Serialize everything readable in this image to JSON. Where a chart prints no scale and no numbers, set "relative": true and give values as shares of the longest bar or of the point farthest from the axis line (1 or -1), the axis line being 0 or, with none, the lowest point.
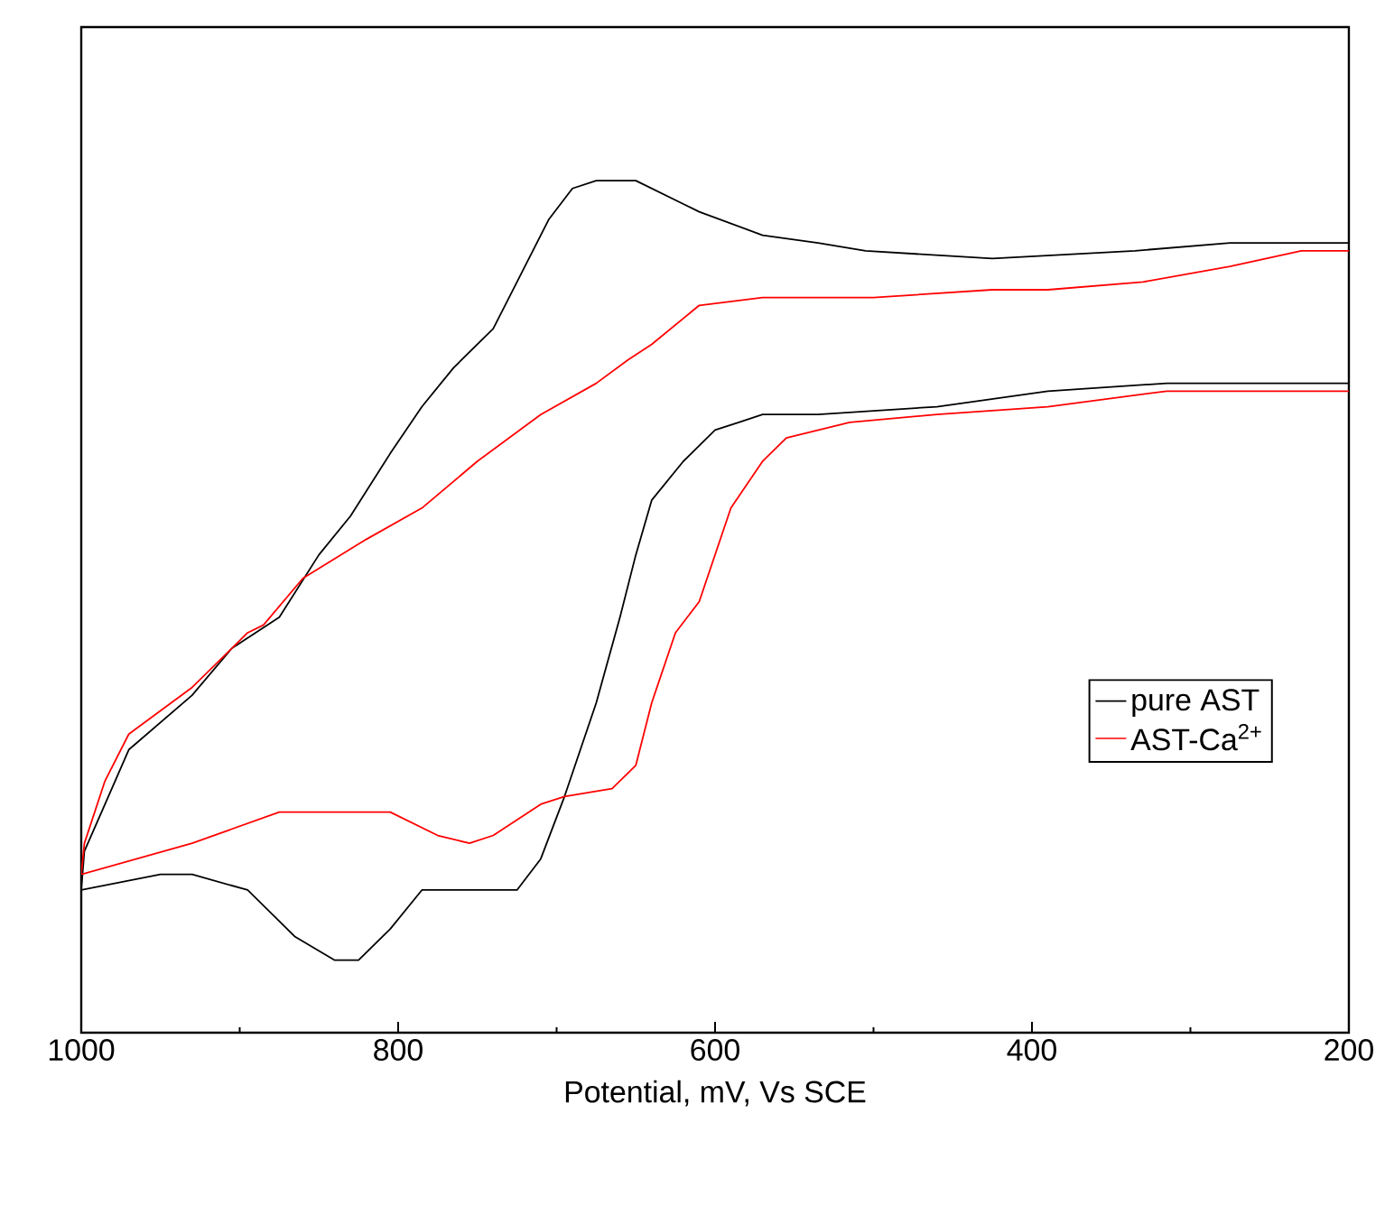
{
  "chart_data": {
    "type": "line",
    "xlabel": "Potential, mV, Vs SCE",
    "relative": true,
    "xlim": [
      1000,
      200
    ],
    "xticks": [
      1000,
      800,
      600,
      400,
      200
    ],
    "tick_labels": "x",
    "legend": "right",
    "series": [
      {
        "name": "pure AST",
        "color": "#000000",
        "x": [
          1000,
          950,
          930,
          895,
          865,
          840,
          825,
          805,
          785,
          765,
          735,
          725,
          710,
          695,
          675,
          660,
          650,
          640,
          620,
          600,
          585,
          570,
          535,
          460,
          390,
          315,
          230,
          200
        ],
        "values": [
          0.09,
          0.11,
          0.11,
          0.09,
          0.03,
          0,
          0,
          0.04,
          0.09,
          0.09,
          0.09,
          0.09,
          0.13,
          0.21,
          0.33,
          0.44,
          0.52,
          0.59,
          0.64,
          0.68,
          0.69,
          0.7,
          0.7,
          0.71,
          0.73,
          0.74,
          0.74,
          0.74
        ]
      },
      {
        "color": "#000000",
        "x": [
          200,
          230,
          275,
          335,
          425,
          505,
          535,
          570,
          610,
          620,
          650,
          675,
          690,
          705,
          720,
          740,
          765,
          785,
          805,
          830,
          850,
          875,
          905,
          930,
          970,
          985,
          998,
          1000
        ],
        "values": [
          0.92,
          0.92,
          0.92,
          0.91,
          0.9,
          0.91,
          0.92,
          0.93,
          0.96,
          0.97,
          1,
          1,
          0.99,
          0.95,
          0.89,
          0.81,
          0.76,
          0.71,
          0.65,
          0.57,
          0.52,
          0.44,
          0.4,
          0.34,
          0.27,
          0.2,
          0.14,
          0.09
        ]
      },
      {
        "name": "AST-Ca$^{2+}$",
        "color": "#ff0000",
        "x": [
          1000,
          930,
          875,
          840,
          805,
          775,
          755,
          740,
          710,
          695,
          665,
          650,
          640,
          625,
          610,
          605,
          590,
          570,
          555,
          515,
          460,
          390,
          315,
          230,
          200
        ],
        "values": [
          0.11,
          0.15,
          0.19,
          0.19,
          0.19,
          0.16,
          0.15,
          0.16,
          0.2,
          0.21,
          0.22,
          0.25,
          0.33,
          0.42,
          0.46,
          0.49,
          0.58,
          0.64,
          0.67,
          0.69,
          0.7,
          0.71,
          0.73,
          0.73,
          0.73
        ]
      },
      {
        "color": "#ff0000",
        "x": [
          200,
          230,
          275,
          330,
          390,
          425,
          500,
          570,
          610,
          640,
          655,
          675,
          710,
          750,
          785,
          820,
          860,
          885,
          895,
          930,
          970,
          985,
          998,
          1000
        ],
        "values": [
          0.91,
          0.91,
          0.89,
          0.87,
          0.86,
          0.86,
          0.85,
          0.85,
          0.84,
          0.79,
          0.77,
          0.74,
          0.7,
          0.64,
          0.58,
          0.54,
          0.49,
          0.43,
          0.42,
          0.35,
          0.29,
          0.23,
          0.15,
          0.11
        ]
      }
    ]
  }
}
